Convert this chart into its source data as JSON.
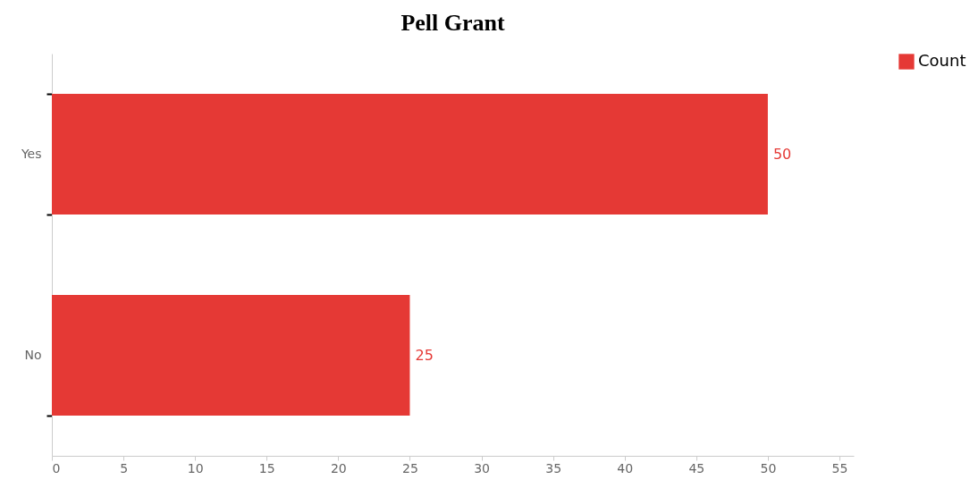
{
  "chart_data": {
    "type": "bar",
    "orientation": "horizontal",
    "title": "Pell Grant",
    "categories": [
      "Yes",
      "No"
    ],
    "series": [
      {
        "name": "Count",
        "color": "#e53935",
        "values": [
          50,
          25
        ]
      }
    ],
    "xlim": [
      0,
      56
    ],
    "xticks": [
      0,
      5,
      10,
      15,
      20,
      25,
      30,
      35,
      40,
      45,
      50,
      55
    ],
    "grid": false,
    "legend": "right",
    "data_labels": true
  }
}
